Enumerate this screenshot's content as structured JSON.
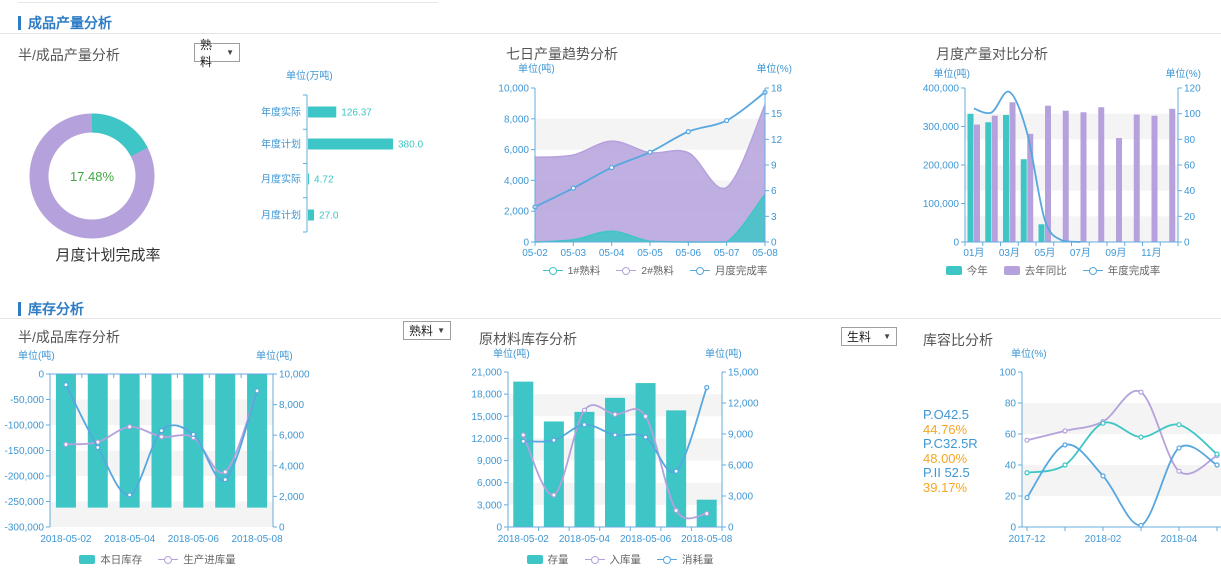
{
  "sections": {
    "production": "成品产量分析",
    "inventory": "库存分析"
  },
  "panels": {
    "semi_production": {
      "title": "半/成品产量分析",
      "dropdown": "熟料"
    },
    "trend7": {
      "title": "七日产量趋势分析"
    },
    "monthly": {
      "title": "月度产量对比分析"
    },
    "semi_inventory": {
      "title": "半/成品库存分析",
      "dropdown": "熟料"
    },
    "raw_inventory": {
      "title": "原材料库存分析"
    },
    "capacity": {
      "title": "库容比分析",
      "dropdown": "生料"
    }
  },
  "colors": {
    "teal": "#3EC5C5",
    "purple": "#B5A1DC",
    "blue": "#56A7E0",
    "axis_line": "#63ACDE",
    "axis_text": "#3E97D4",
    "green": "#43A843",
    "orange": "#F5A623",
    "title": "#555555",
    "header": "#2E7CC5",
    "caption": "#333333",
    "band": "#f1f1f1"
  },
  "chart_data": [
    {
      "id": "plan-completion-donut",
      "type": "pie",
      "caption": "月度计划完成率",
      "center_label": "17.48%",
      "percent_complete": 17.48,
      "slices": [
        {
          "value": 17.48,
          "color": "teal"
        },
        {
          "value": 82.52,
          "color": "purple"
        }
      ]
    },
    {
      "id": "production-bars",
      "type": "bar",
      "orientation": "horizontal",
      "unit": "单位(万吨)",
      "categories": [
        "年度实际",
        "年度计划",
        "月度实际",
        "月度计划"
      ],
      "values": [
        126.37,
        380.0,
        4.72,
        27.0
      ],
      "value_labels": [
        "126.37",
        "380.0",
        "4.72",
        "27.0"
      ],
      "xlim": [
        0,
        380
      ]
    },
    {
      "id": "trend7",
      "type": "area",
      "x": [
        "05-02",
        "05-03",
        "05-04",
        "05-05",
        "05-06",
        "05-07",
        "05-08"
      ],
      "left_axis": {
        "label": "单位(吨)",
        "min": 0,
        "max": 10000,
        "step": 2000
      },
      "right_axis": {
        "label": "单位(%)",
        "min": 0,
        "max": 18,
        "step": 3
      },
      "series": [
        {
          "name": "2#熟料",
          "type": "area",
          "axis": "left",
          "color": "purple",
          "values": [
            5500,
            5650,
            6550,
            5800,
            5800,
            3550,
            8900
          ]
        },
        {
          "name": "1#熟料",
          "type": "area",
          "axis": "left",
          "color": "teal",
          "values": [
            0,
            150,
            700,
            50,
            0,
            0,
            3100
          ]
        },
        {
          "name": "月度完成率",
          "type": "line",
          "axis": "right",
          "color": "blue",
          "values": [
            4.1,
            6.3,
            8.7,
            10.5,
            12.9,
            14.2,
            17.5
          ]
        }
      ],
      "legend_order": [
        "1#熟料",
        "2#熟料",
        "月度完成率"
      ]
    },
    {
      "id": "monthly-compare",
      "type": "bar-line",
      "month_count": 12,
      "x_tick_labels": [
        "01月",
        "03月",
        "05月",
        "07月",
        "09月",
        "11月"
      ],
      "left_axis": {
        "label": "单位(吨)",
        "min": 0,
        "max": 400000,
        "step": 100000
      },
      "right_axis": {
        "label": "单位(%)",
        "min": 0,
        "max": 120,
        "step": 20
      },
      "series": [
        {
          "name": "今年",
          "type": "bar",
          "axis": "left",
          "color": "teal",
          "values": [
            333000,
            311000,
            330000,
            215000,
            46000,
            null,
            null,
            null,
            null,
            null,
            null,
            null
          ]
        },
        {
          "name": "去年同比",
          "type": "bar",
          "axis": "left",
          "color": "purple",
          "values": [
            305000,
            328000,
            363000,
            281000,
            354000,
            341000,
            337000,
            350000,
            270000,
            331000,
            328000,
            346000
          ]
        },
        {
          "name": "年度完成率",
          "type": "line",
          "axis": "right",
          "color": "blue",
          "values": [
            104,
            101,
            117,
            85,
            17,
            1,
            0,
            null,
            null,
            null,
            null,
            null
          ]
        }
      ]
    },
    {
      "id": "semi-inventory",
      "type": "bar-line",
      "x": [
        "2018-05-02",
        "2018-05-03",
        "2018-05-04",
        "2018-05-05",
        "2018-05-06",
        "2018-05-07",
        "2018-05-08"
      ],
      "x_tick_labels": [
        "2018-05-02",
        "2018-05-04",
        "2018-05-06",
        "2018-05-08"
      ],
      "left_axis": {
        "label": "单位(吨)",
        "min": -300000,
        "max": 0,
        "step": 50000
      },
      "right_axis": {
        "label": "单位(吨)",
        "min": 0,
        "max": 10000,
        "step": 2000
      },
      "series": [
        {
          "name": "本日库存",
          "type": "bar",
          "axis": "left",
          "color": "teal",
          "in_legend": true,
          "values": [
            -262000,
            -262000,
            -262000,
            -262000,
            -262000,
            -262000,
            -262000
          ]
        },
        {
          "name": "生产进库量",
          "type": "line",
          "axis": "right",
          "color": "purple",
          "in_legend": true,
          "values": [
            5400,
            5550,
            6550,
            5900,
            5850,
            3600,
            8900
          ]
        },
        {
          "name": "",
          "type": "line",
          "axis": "right",
          "color": "blue",
          "in_legend": false,
          "values": [
            9300,
            5200,
            2100,
            6300,
            6050,
            3100,
            8900
          ]
        }
      ]
    },
    {
      "id": "raw-inventory",
      "type": "bar-line",
      "x": [
        "2018-05-02",
        "2018-05-03",
        "2018-05-04",
        "2018-05-05",
        "2018-05-06",
        "2018-05-07",
        "2018-05-08"
      ],
      "x_tick_labels": [
        "2018-05-02",
        "2018-05-04",
        "2018-05-06",
        "2018-05-08"
      ],
      "left_axis": {
        "label": "单位(吨)",
        "min": 0,
        "max": 21000,
        "step": 3000
      },
      "right_axis": {
        "label": "单位(吨)",
        "min": 0,
        "max": 15000,
        "step": 3000
      },
      "series": [
        {
          "name": "存量",
          "type": "bar",
          "axis": "left",
          "color": "teal",
          "in_legend": true,
          "values": [
            19700,
            14300,
            15600,
            17500,
            19500,
            15800,
            3700
          ]
        },
        {
          "name": "入库量",
          "type": "line",
          "axis": "right",
          "color": "purple",
          "in_legend": true,
          "values": [
            8900,
            3100,
            11300,
            10900,
            10700,
            1600,
            1300
          ]
        },
        {
          "name": "消耗量",
          "type": "line",
          "axis": "right",
          "color": "blue",
          "in_legend": true,
          "values": [
            8300,
            8400,
            9900,
            8900,
            8700,
            5400,
            13500
          ]
        }
      ]
    },
    {
      "id": "capacity-ratio",
      "type": "line",
      "unit": "单位(%)",
      "x_tick_labels": [
        "2017-12",
        "2018-02",
        "2018-04"
      ],
      "point_count": 6,
      "y_axis": {
        "min": 0,
        "max": 100,
        "step": 20
      },
      "stats": [
        {
          "name": "P.O42.5",
          "value": "44.76%"
        },
        {
          "name": "P.C32.5R",
          "value": "48.00%"
        },
        {
          "name": "P.II 52.5",
          "value": "39.17%"
        }
      ],
      "series": [
        {
          "name": "",
          "color": "purple",
          "values": [
            56,
            62,
            68,
            87,
            36,
            46
          ]
        },
        {
          "name": "",
          "color": "teal",
          "values": [
            35,
            40,
            67,
            58,
            66,
            47
          ]
        },
        {
          "name": "",
          "color": "blue",
          "values": [
            19,
            53,
            33,
            1,
            51,
            40
          ]
        }
      ]
    }
  ]
}
